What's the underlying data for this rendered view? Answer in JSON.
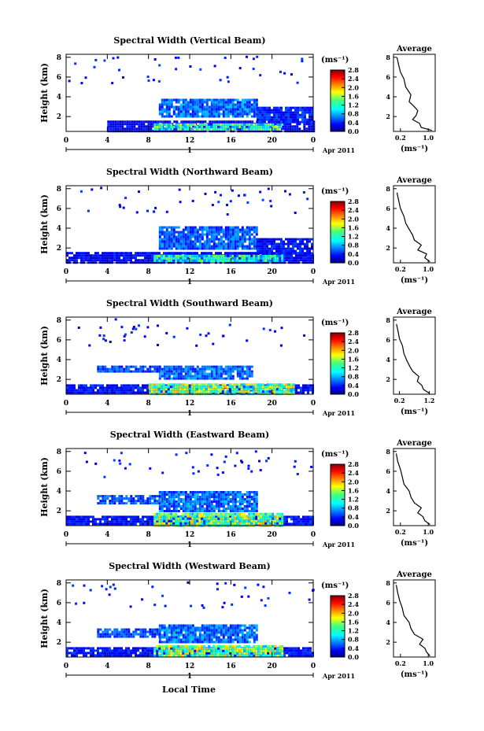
{
  "figure": {
    "xlabel": "Local Time",
    "colorbar_unit": "(ms⁻¹)",
    "colorbar_ticks": [
      "0.0",
      "0.4",
      "0.8",
      "1.2",
      "1.6",
      "2.0",
      "2.4",
      "2.8"
    ],
    "average_title": "Average",
    "average_xlabel": "(ms⁻¹)",
    "day_label": "1",
    "date_label": "Apr 2011",
    "time_ticks": [
      "0",
      "4",
      "8",
      "12",
      "16",
      "20",
      "0"
    ],
    "height_ticks": [
      "2",
      "4",
      "6",
      "8"
    ],
    "height_label": "Height (km)",
    "avg_y_ticks": [
      "2",
      "4",
      "6",
      "8"
    ]
  },
  "chart_data": [
    {
      "type": "heatmap",
      "title": "Spectral Width (Vertical Beam)",
      "xlabel": "",
      "ylabel": "Height (km)",
      "x_range_hours": [
        0,
        24
      ],
      "y_range_km": [
        0.5,
        8.3
      ],
      "color_range": [
        0.0,
        2.8
      ],
      "layers": [
        {
          "t0": 4.0,
          "t1": 24.0,
          "h0": 0.6,
          "h1": 1.6,
          "v": 0.3
        },
        {
          "t0": 8.5,
          "t1": 21.0,
          "h0": 0.6,
          "h1": 1.3,
          "v": 1.2
        },
        {
          "t0": 9.0,
          "t1": 18.5,
          "h0": 2.0,
          "h1": 3.8,
          "v": 0.6
        },
        {
          "t0": 18.5,
          "t1": 24.0,
          "h0": 1.5,
          "h1": 3.0,
          "v": 0.4
        }
      ],
      "average": {
        "x_ticks": [
          "0.2",
          "1.0"
        ],
        "xlim": [
          0.0,
          1.2
        ],
        "profile": [
          [
            0.6,
            1.1
          ],
          [
            0.9,
            0.8
          ],
          [
            1.3,
            0.75
          ],
          [
            1.7,
            0.55
          ],
          [
            2.1,
            0.65
          ],
          [
            2.6,
            0.7
          ],
          [
            3.0,
            0.6
          ],
          [
            3.5,
            0.45
          ],
          [
            4.2,
            0.5
          ],
          [
            5.0,
            0.35
          ],
          [
            5.8,
            0.3
          ],
          [
            6.5,
            0.2
          ],
          [
            7.2,
            0.15
          ],
          [
            8.0,
            0.1
          ]
        ]
      }
    },
    {
      "type": "heatmap",
      "title": "Spectral Width (Northward Beam)",
      "xlabel": "",
      "ylabel": "Height (km)",
      "x_range_hours": [
        0,
        24
      ],
      "y_range_km": [
        0.5,
        8.3
      ],
      "color_range": [
        0.0,
        2.8
      ],
      "layers": [
        {
          "t0": 0.0,
          "t1": 24.0,
          "h0": 0.6,
          "h1": 1.6,
          "v": 0.3
        },
        {
          "t0": 8.5,
          "t1": 21.0,
          "h0": 0.6,
          "h1": 1.3,
          "v": 1.1
        },
        {
          "t0": 9.0,
          "t1": 18.5,
          "h0": 2.0,
          "h1": 4.2,
          "v": 0.55
        },
        {
          "t0": 18.5,
          "t1": 24.0,
          "h0": 1.5,
          "h1": 3.0,
          "v": 0.35
        }
      ],
      "average": {
        "x_ticks": [
          "0.2",
          "1.0"
        ],
        "xlim": [
          0.0,
          1.2
        ],
        "profile": [
          [
            0.6,
            1.05
          ],
          [
            1.0,
            0.9
          ],
          [
            1.4,
            0.95
          ],
          [
            1.8,
            0.7
          ],
          [
            2.3,
            0.8
          ],
          [
            2.8,
            0.6
          ],
          [
            3.3,
            0.55
          ],
          [
            3.9,
            0.45
          ],
          [
            4.5,
            0.35
          ],
          [
            5.2,
            0.3
          ],
          [
            6.0,
            0.2
          ],
          [
            6.8,
            0.15
          ],
          [
            7.6,
            0.1
          ]
        ]
      }
    },
    {
      "type": "heatmap",
      "title": "Spectral Width (Southward Beam)",
      "xlabel": "",
      "ylabel": "Height (km)",
      "x_range_hours": [
        0,
        24
      ],
      "y_range_km": [
        0.5,
        8.3
      ],
      "color_range": [
        0.0,
        2.8
      ],
      "layers": [
        {
          "t0": 0.0,
          "t1": 24.0,
          "h0": 0.6,
          "h1": 1.5,
          "v": 0.35
        },
        {
          "t0": 8.0,
          "t1": 22.0,
          "h0": 0.6,
          "h1": 1.6,
          "v": 1.4
        },
        {
          "t0": 9.0,
          "t1": 18.0,
          "h0": 2.0,
          "h1": 3.4,
          "v": 0.6
        },
        {
          "t0": 3.0,
          "t1": 9.0,
          "h0": 2.8,
          "h1": 3.4,
          "v": 0.5
        }
      ],
      "average": {
        "x_ticks": [
          "0.2",
          "1.2"
        ],
        "xlim": [
          0.0,
          1.4
        ],
        "profile": [
          [
            0.6,
            1.2
          ],
          [
            1.0,
            1.0
          ],
          [
            1.4,
            0.95
          ],
          [
            1.8,
            0.8
          ],
          [
            2.3,
            0.85
          ],
          [
            2.8,
            0.65
          ],
          [
            3.3,
            0.55
          ],
          [
            3.9,
            0.45
          ],
          [
            4.6,
            0.35
          ],
          [
            5.4,
            0.3
          ],
          [
            6.1,
            0.2
          ],
          [
            6.9,
            0.15
          ],
          [
            7.6,
            0.1
          ]
        ]
      }
    },
    {
      "type": "heatmap",
      "title": "Spectral Width (Eastward Beam)",
      "xlabel": "",
      "ylabel": "Height (km)",
      "x_range_hours": [
        0,
        24
      ],
      "y_range_km": [
        0.5,
        8.3
      ],
      "color_range": [
        0.0,
        2.8
      ],
      "layers": [
        {
          "t0": 0.0,
          "t1": 24.0,
          "h0": 0.6,
          "h1": 1.5,
          "v": 0.35
        },
        {
          "t0": 8.5,
          "t1": 21.0,
          "h0": 0.6,
          "h1": 1.8,
          "v": 1.4
        },
        {
          "t0": 9.0,
          "t1": 18.5,
          "h0": 2.0,
          "h1": 4.0,
          "v": 0.6
        },
        {
          "t0": 3.0,
          "t1": 9.0,
          "h0": 2.8,
          "h1": 3.6,
          "v": 0.5
        }
      ],
      "average": {
        "x_ticks": [
          "0.2",
          "1.0"
        ],
        "xlim": [
          0.0,
          1.2
        ],
        "profile": [
          [
            0.6,
            1.05
          ],
          [
            1.0,
            0.9
          ],
          [
            1.4,
            0.85
          ],
          [
            1.8,
            0.7
          ],
          [
            2.3,
            0.8
          ],
          [
            2.8,
            0.6
          ],
          [
            3.4,
            0.5
          ],
          [
            4.0,
            0.45
          ],
          [
            4.7,
            0.3
          ],
          [
            5.5,
            0.25
          ],
          [
            6.2,
            0.2
          ],
          [
            7.0,
            0.12
          ],
          [
            7.8,
            0.08
          ]
        ]
      }
    },
    {
      "type": "heatmap",
      "title": "Spectral Width (Westward Beam)",
      "xlabel": "Local Time",
      "ylabel": "Height (km)",
      "x_range_hours": [
        0,
        24
      ],
      "y_range_km": [
        0.5,
        8.3
      ],
      "color_range": [
        0.0,
        2.8
      ],
      "layers": [
        {
          "t0": 0.0,
          "t1": 24.0,
          "h0": 0.6,
          "h1": 1.5,
          "v": 0.35
        },
        {
          "t0": 8.5,
          "t1": 21.0,
          "h0": 0.6,
          "h1": 1.7,
          "v": 1.4
        },
        {
          "t0": 9.0,
          "t1": 18.5,
          "h0": 2.0,
          "h1": 3.8,
          "v": 0.6
        },
        {
          "t0": 3.0,
          "t1": 9.0,
          "h0": 2.6,
          "h1": 3.4,
          "v": 0.5
        }
      ],
      "average": {
        "x_ticks": [
          "0.2",
          "1.0"
        ],
        "xlim": [
          0.0,
          1.2
        ],
        "profile": [
          [
            0.6,
            1.05
          ],
          [
            1.0,
            0.95
          ],
          [
            1.4,
            0.9
          ],
          [
            1.8,
            0.75
          ],
          [
            2.3,
            0.85
          ],
          [
            2.8,
            0.6
          ],
          [
            3.4,
            0.5
          ],
          [
            4.0,
            0.45
          ],
          [
            4.7,
            0.3
          ],
          [
            5.5,
            0.25
          ],
          [
            6.2,
            0.18
          ],
          [
            7.0,
            0.12
          ],
          [
            7.8,
            0.08
          ]
        ]
      }
    }
  ]
}
